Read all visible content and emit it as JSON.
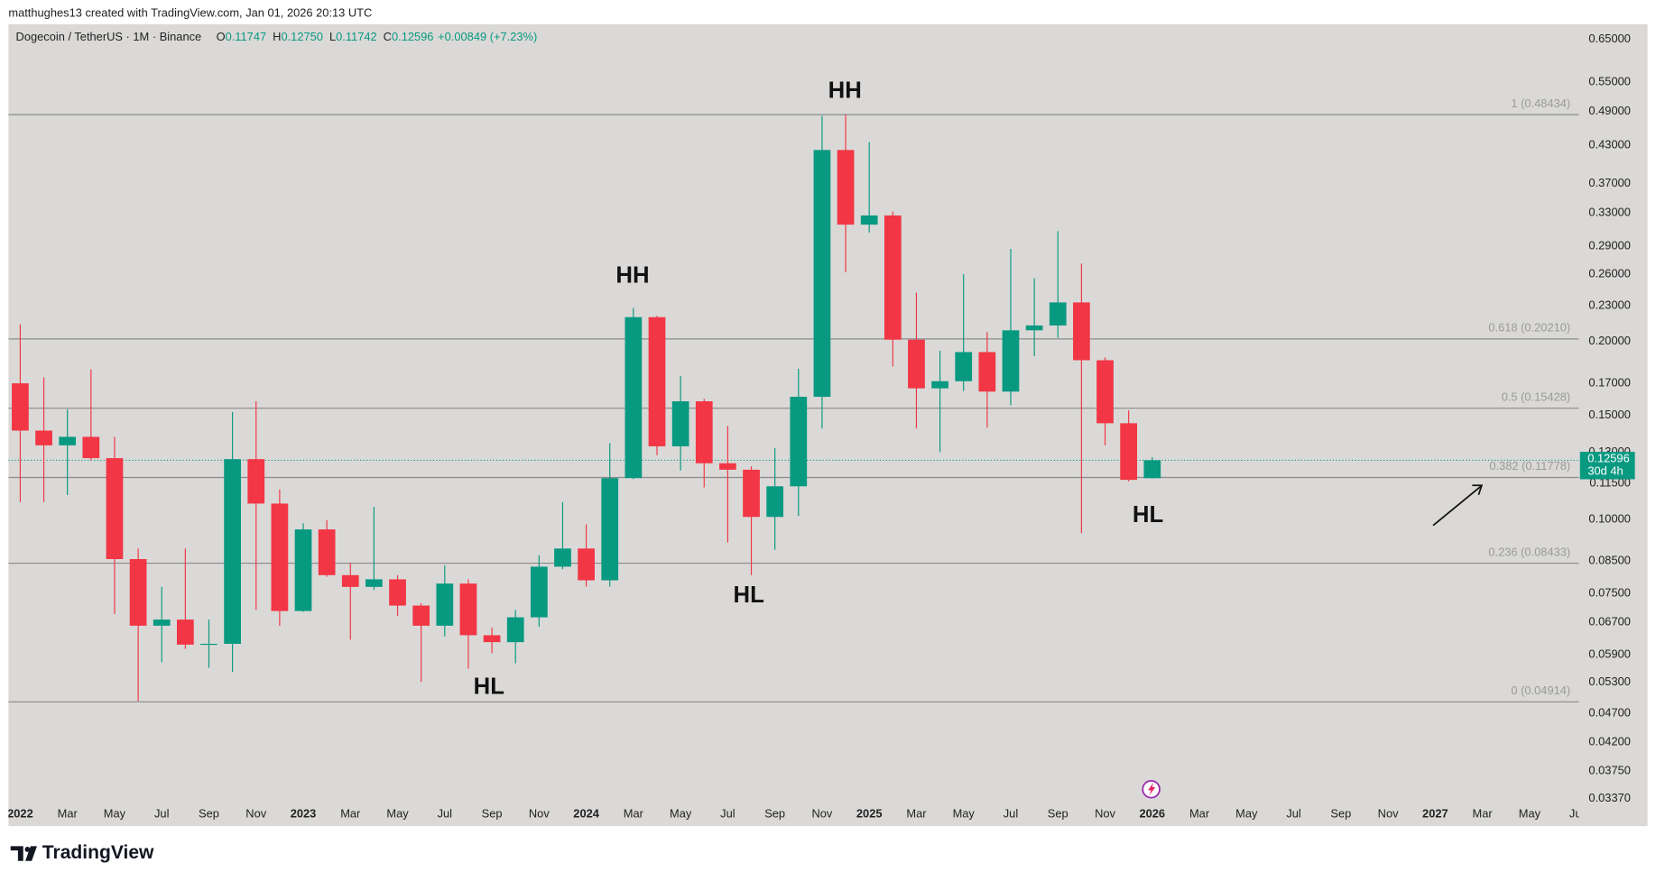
{
  "chart_data": {
    "type": "candlestick",
    "caption": "matthughes13 created with TradingView.com, Jan 01, 2026 20:13 UTC",
    "subtitle": "Dogecoin / TetherUS · 1M · Binance",
    "ohlc": [
      {
        "name": "O",
        "value": 0.11747,
        "label": "0.11747"
      },
      {
        "name": "H",
        "value": 0.1275,
        "label": "0.12750"
      },
      {
        "name": "L",
        "value": 0.11742,
        "label": "0.11742"
      },
      {
        "name": "C",
        "value": 0.12596,
        "label": "0.12596"
      }
    ],
    "change": "+0.00849 (+7.23%)",
    "brand": "TradingView",
    "log_scale": true,
    "up_color": "#089981",
    "down_color": "#f23645",
    "categories": [
      "2022",
      null,
      "Mar",
      null,
      "May",
      null,
      "Jul",
      null,
      "Sep",
      null,
      "Nov",
      null,
      "2023",
      null,
      "Mar",
      null,
      "May",
      null,
      "Jul",
      null,
      "Sep",
      null,
      "Nov",
      null,
      "2024",
      null,
      "Mar",
      null,
      "May",
      null,
      "Jul",
      null,
      "Sep",
      null,
      "Nov",
      null,
      "2025",
      null,
      "Mar",
      null,
      "May",
      null,
      "Jul",
      null,
      "Sep",
      null,
      "Nov",
      null,
      "2026",
      null,
      "Mar",
      null,
      "May",
      null,
      "Jul",
      null,
      "Sep",
      null,
      "Nov",
      null,
      "2027",
      null,
      "Mar",
      null,
      "May",
      null,
      "Jul"
    ],
    "open": [
      0.17,
      0.1414,
      0.1335,
      0.138,
      0.127,
      0.0857,
      0.0661,
      0.0677,
      0.0614,
      0.0616,
      0.1265,
      0.1064,
      0.07,
      0.0962,
      0.0805,
      0.0769,
      0.0792,
      0.0715,
      0.0661,
      0.0779,
      0.0637,
      0.062,
      0.0683,
      0.0832,
      0.0893,
      0.0789,
      0.1175,
      0.22,
      0.133,
      0.1585,
      0.1245,
      0.1214,
      0.101,
      0.1138,
      0.1613,
      0.422,
      0.3155,
      0.327,
      0.2015,
      0.1667,
      0.1714,
      0.192,
      0.1646,
      0.209,
      0.213,
      0.233,
      0.186,
      0.1455,
      0.11747,
      null,
      null,
      null,
      null,
      null,
      null,
      null,
      null,
      null,
      null,
      null,
      null,
      null,
      null,
      null,
      null,
      null,
      null
    ],
    "high": [
      0.214,
      0.174,
      0.1535,
      0.1795,
      0.138,
      0.0893,
      0.0769,
      0.0893,
      0.0677,
      0.152,
      0.1585,
      0.1124,
      0.0985,
      0.0997,
      0.0845,
      0.105,
      0.0805,
      0.0722,
      0.0836,
      0.0792,
      0.0656,
      0.0703,
      0.087,
      0.107,
      0.0981,
      0.1346,
      0.228,
      0.221,
      0.175,
      0.16,
      0.144,
      0.123,
      0.132,
      0.18,
      0.482,
      0.484,
      0.435,
      0.332,
      0.242,
      0.193,
      0.26,
      0.2075,
      0.287,
      0.256,
      0.3075,
      0.271,
      0.188,
      0.153,
      0.1275,
      null,
      null,
      null,
      null,
      null,
      null,
      null,
      null,
      null,
      null,
      null,
      null,
      null,
      null,
      null,
      null,
      null,
      null
    ],
    "low": [
      0.107,
      0.107,
      0.11,
      0.126,
      0.0692,
      0.0493,
      0.0573,
      0.0604,
      0.0561,
      0.0552,
      0.0703,
      0.0661,
      0.0698,
      0.08,
      0.0626,
      0.076,
      0.0686,
      0.0531,
      0.0634,
      0.0559,
      0.0594,
      0.0571,
      0.0658,
      0.0824,
      0.077,
      0.077,
      0.117,
      0.1285,
      0.121,
      0.1133,
      0.0914,
      0.0805,
      0.0889,
      0.1014,
      0.1426,
      0.262,
      0.306,
      0.1815,
      0.1426,
      0.13,
      0.165,
      0.143,
      0.156,
      0.189,
      0.203,
      0.0948,
      0.1335,
      0.116,
      0.11742,
      null,
      null,
      null,
      null,
      null,
      null,
      null,
      null,
      null,
      null,
      null,
      null,
      null,
      null,
      null,
      null,
      null,
      null
    ],
    "close": [
      0.1414,
      0.1335,
      0.138,
      0.127,
      0.0857,
      0.0661,
      0.0677,
      0.0614,
      0.0616,
      0.1265,
      0.1064,
      0.07,
      0.0962,
      0.0805,
      0.0769,
      0.0792,
      0.0715,
      0.0661,
      0.0779,
      0.0637,
      0.062,
      0.0683,
      0.0832,
      0.0893,
      0.0789,
      0.1175,
      0.22,
      0.133,
      0.1585,
      0.1245,
      0.1214,
      0.101,
      0.1138,
      0.1613,
      0.422,
      0.3155,
      0.327,
      0.2015,
      0.1667,
      0.1714,
      0.192,
      0.1646,
      0.209,
      0.213,
      0.233,
      0.186,
      0.1455,
      0.1167,
      0.12596,
      null,
      null,
      null,
      null,
      null,
      null,
      null,
      null,
      null,
      null,
      null,
      null,
      null,
      null,
      null,
      null,
      null,
      null
    ],
    "ylim": [
      0.033,
      0.686
    ],
    "yticks": [
      {
        "value": 0.65,
        "label": "0.65000"
      },
      {
        "value": 0.55,
        "label": "0.55000"
      },
      {
        "value": 0.49,
        "label": "0.49000"
      },
      {
        "value": 0.43,
        "label": "0.43000"
      },
      {
        "value": 0.37,
        "label": "0.37000"
      },
      {
        "value": 0.33,
        "label": "0.33000"
      },
      {
        "value": 0.29,
        "label": "0.29000"
      },
      {
        "value": 0.26,
        "label": "0.26000"
      },
      {
        "value": 0.23,
        "label": "0.23000"
      },
      {
        "value": 0.2,
        "label": "0.20000"
      },
      {
        "value": 0.17,
        "label": "0.17000"
      },
      {
        "value": 0.15,
        "label": "0.15000"
      },
      {
        "value": 0.13,
        "label": "0.13000"
      },
      {
        "value": 0.115,
        "label": "0.11500"
      },
      {
        "value": 0.1,
        "label": "0.10000"
      },
      {
        "value": 0.085,
        "label": "0.08500"
      },
      {
        "value": 0.075,
        "label": "0.07500"
      },
      {
        "value": 0.067,
        "label": "0.06700"
      },
      {
        "value": 0.059,
        "label": "0.05900"
      },
      {
        "value": 0.053,
        "label": "0.05300"
      },
      {
        "value": 0.047,
        "label": "0.04700"
      },
      {
        "value": 0.042,
        "label": "0.04200"
      },
      {
        "value": 0.0375,
        "label": "0.03750"
      },
      {
        "value": 0.0337,
        "label": "0.03370"
      }
    ],
    "grid": false,
    "fib_levels": [
      {
        "value": 0.48434,
        "label": "1 (0.48434)"
      },
      {
        "value": 0.2021,
        "label": "0.618 (0.20210)"
      },
      {
        "value": 0.15428,
        "label": "0.5 (0.15428)"
      },
      {
        "value": 0.11778,
        "label": "0.382 (0.11778)"
      },
      {
        "value": 0.08433,
        "label": "0.236 (0.08433)"
      },
      {
        "value": 0.04914,
        "label": "0 (0.04914)"
      }
    ],
    "last_price": 0.12596,
    "countdown": "30d 4h",
    "annotations": [
      "HH",
      "HH",
      "HL",
      "HL",
      "HL"
    ]
  }
}
